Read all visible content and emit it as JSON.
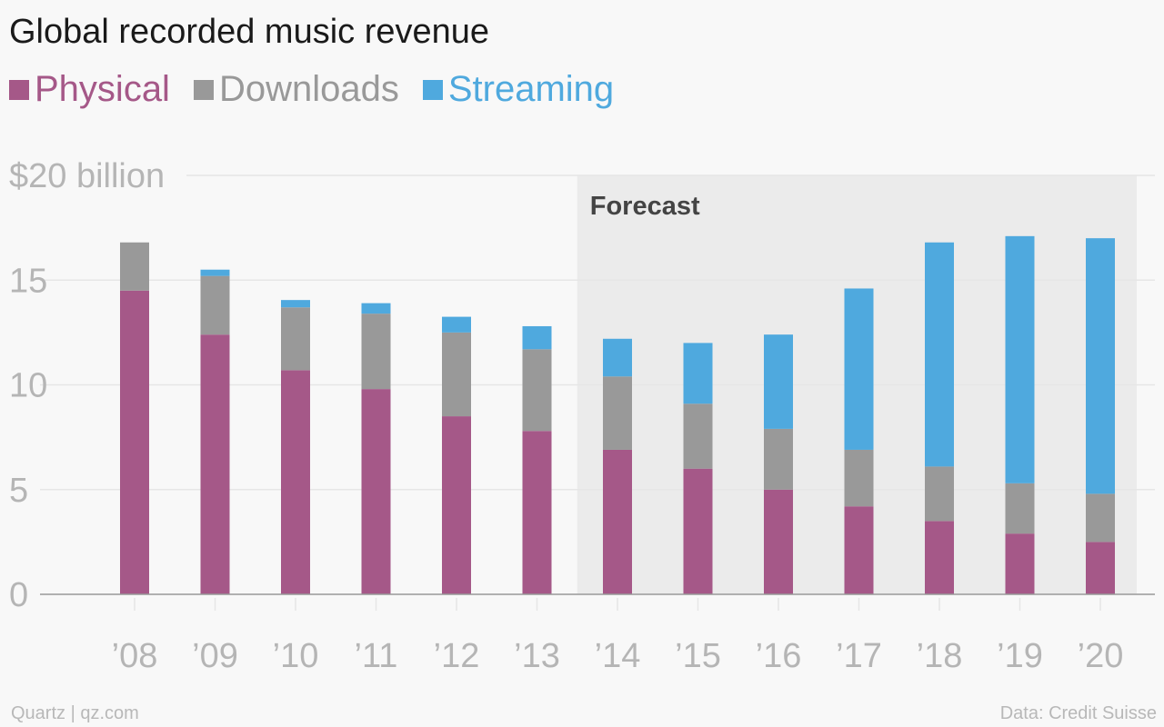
{
  "header": {
    "title": "Global recorded music revenue"
  },
  "footer": {
    "source_left": "Quartz | qz.com",
    "source_right": "Data: Credit Suisse"
  },
  "chart_data": {
    "type": "bar",
    "stacked": true,
    "title": "Global recorded music revenue",
    "categories": [
      "’08",
      "’09",
      "’10",
      "’11",
      "’12",
      "’13",
      "’14",
      "’15",
      "’16",
      "’17",
      "’18",
      "’19",
      "’20"
    ],
    "series": [
      {
        "name": "Physical",
        "color": "#a55888",
        "values": [
          14.5,
          12.4,
          10.7,
          9.8,
          8.5,
          7.8,
          6.9,
          6.0,
          5.0,
          4.2,
          3.5,
          2.9,
          2.5
        ]
      },
      {
        "name": "Downloads",
        "color": "#999999",
        "values": [
          2.3,
          2.8,
          3.0,
          3.6,
          4.0,
          3.9,
          3.5,
          3.1,
          2.9,
          2.7,
          2.6,
          2.4,
          2.3
        ]
      },
      {
        "name": "Streaming",
        "color": "#4fa9de",
        "values": [
          0,
          0.3,
          0.35,
          0.5,
          0.75,
          1.1,
          1.8,
          2.9,
          4.5,
          7.7,
          10.7,
          11.8,
          12.2
        ]
      }
    ],
    "ylim": [
      0,
      20
    ],
    "yticks": [
      {
        "value": 20,
        "label": "$20 billion"
      },
      {
        "value": 15,
        "label": "15"
      },
      {
        "value": 10,
        "label": "10"
      },
      {
        "value": 5,
        "label": "5"
      },
      {
        "value": 0,
        "label": "0"
      }
    ],
    "grid": true,
    "legend_position": "top-left",
    "forecast": {
      "label": "Forecast",
      "start_category": "’14",
      "end_category": "’20"
    },
    "colors": {
      "grid": "#e6e6e6",
      "baseline": "#999999",
      "tick_text": "#b5b5b5",
      "forecast_bg": "#ebebeb",
      "forecast_text": "#444444"
    }
  }
}
